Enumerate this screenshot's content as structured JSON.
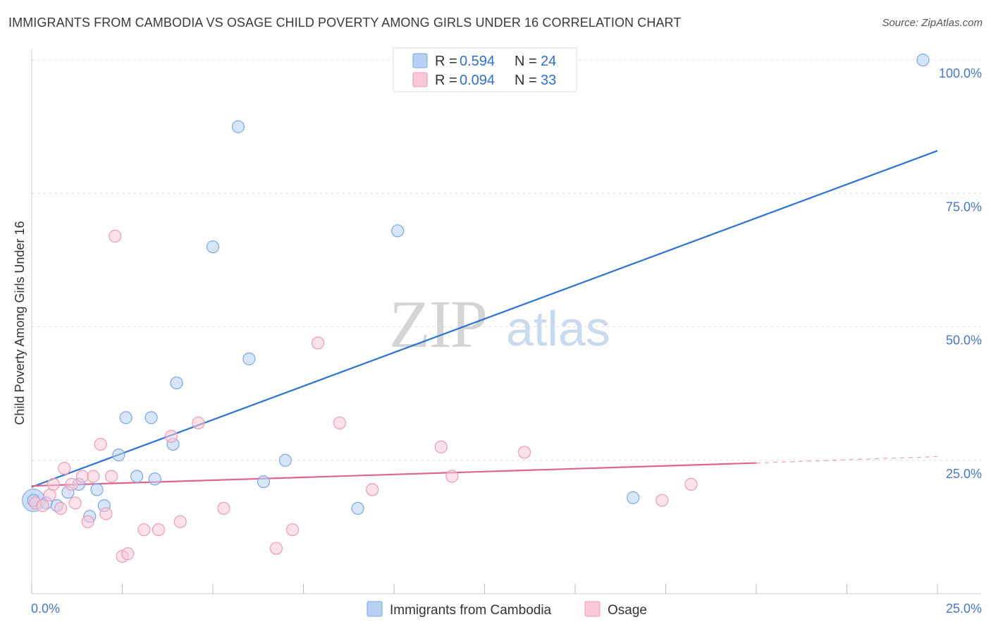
{
  "chart_data": {
    "type": "scatter",
    "title": "IMMIGRANTS FROM CAMBODIA VS OSAGE CHILD POVERTY AMONG GIRLS UNDER 16 CORRELATION CHART",
    "source": "Source: ZipAtlas.com",
    "xlabel": "",
    "ylabel": "Child Poverty Among Girls Under 16",
    "xlim": [
      0,
      25
    ],
    "ylim": [
      0,
      102
    ],
    "x_tick_labels": [
      "0.0%",
      "25.0%"
    ],
    "y_ticks": [
      25,
      50,
      75,
      100
    ],
    "y_tick_labels": [
      "25.0%",
      "50.0%",
      "75.0%",
      "100.0%"
    ],
    "watermark": {
      "zip": "ZIP",
      "atlas": "atlas"
    },
    "legend": [
      {
        "r_label": "R =",
        "r_value": "0.594",
        "n_label": "N =",
        "n_value": "24"
      },
      {
        "r_label": "R =",
        "r_value": "0.094",
        "n_label": "N =",
        "n_value": "33"
      }
    ],
    "series": [
      {
        "name": "Immigrants from Cambodia",
        "color": "#7aa7e8",
        "fill": "#b8d0f3",
        "line_color": "#2e72d2",
        "trend": {
          "x0": 0,
          "y0": 20,
          "x1": 25,
          "y1": 83
        },
        "points": [
          [
            0.05,
            17.5
          ],
          [
            0.4,
            17
          ],
          [
            0.7,
            16.5
          ],
          [
            1.0,
            19
          ],
          [
            1.3,
            20.5
          ],
          [
            1.6,
            14.5
          ],
          [
            1.8,
            19.5
          ],
          [
            2.0,
            16.5
          ],
          [
            2.4,
            26
          ],
          [
            2.6,
            33
          ],
          [
            2.9,
            22
          ],
          [
            3.3,
            33
          ],
          [
            3.4,
            21.5
          ],
          [
            3.9,
            28
          ],
          [
            4.0,
            39.5
          ],
          [
            5.0,
            65
          ],
          [
            5.7,
            87.5
          ],
          [
            6.0,
            44
          ],
          [
            6.4,
            21
          ],
          [
            7.0,
            25
          ],
          [
            9.0,
            16
          ],
          [
            10.1,
            68
          ],
          [
            16.6,
            18
          ],
          [
            24.6,
            100
          ]
        ]
      },
      {
        "name": "Osage",
        "color": "#f09ab5",
        "fill": "#f8c8d7",
        "line_color": "#e0648e",
        "trend": {
          "x0": 0,
          "y0": 20.2,
          "x1": 20,
          "y1": 24.5,
          "dash_to_x": 25,
          "dash_to_y": 25.7
        },
        "points": [
          [
            0.1,
            17
          ],
          [
            0.3,
            16.5
          ],
          [
            0.5,
            18.5
          ],
          [
            0.6,
            20.5
          ],
          [
            0.8,
            16
          ],
          [
            0.9,
            23.5
          ],
          [
            1.1,
            20.5
          ],
          [
            1.2,
            17
          ],
          [
            1.4,
            22
          ],
          [
            1.55,
            13.5
          ],
          [
            1.7,
            22
          ],
          [
            1.9,
            28
          ],
          [
            2.05,
            15
          ],
          [
            2.2,
            22
          ],
          [
            2.3,
            67
          ],
          [
            2.5,
            7
          ],
          [
            2.65,
            7.5
          ],
          [
            3.1,
            12
          ],
          [
            3.5,
            12
          ],
          [
            3.85,
            29.5
          ],
          [
            4.1,
            13.5
          ],
          [
            4.6,
            32
          ],
          [
            5.3,
            16
          ],
          [
            6.75,
            8.5
          ],
          [
            7.2,
            12
          ],
          [
            7.9,
            47
          ],
          [
            8.5,
            32
          ],
          [
            9.4,
            19.5
          ],
          [
            11.3,
            27.5
          ],
          [
            11.6,
            22
          ],
          [
            13.6,
            26.5
          ],
          [
            17.4,
            17.5
          ],
          [
            18.2,
            20.5
          ]
        ]
      }
    ]
  }
}
